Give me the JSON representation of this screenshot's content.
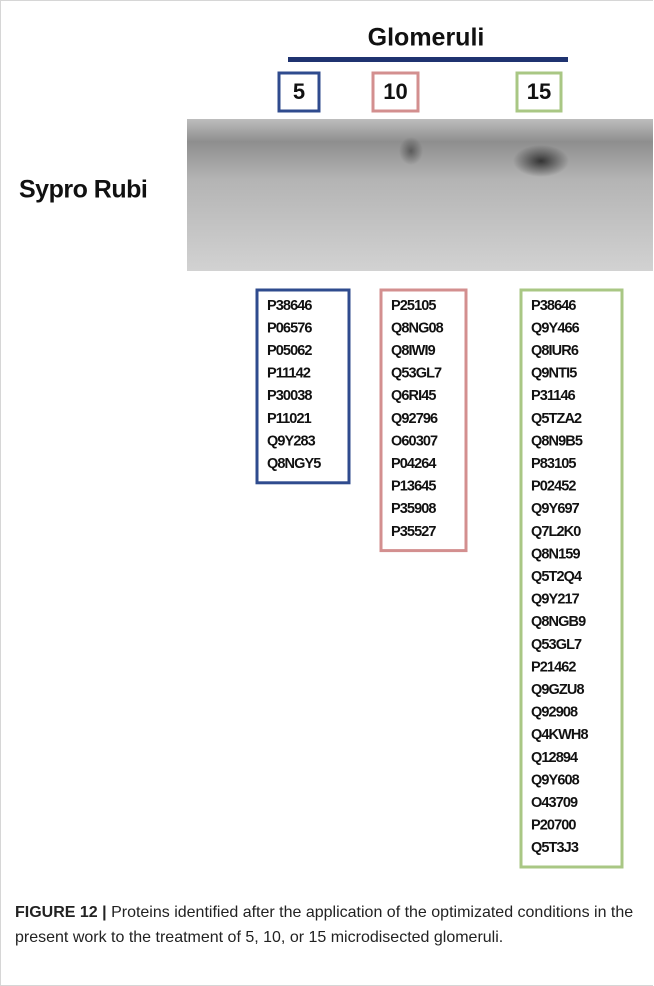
{
  "figure": {
    "group_title": "Glomeruli",
    "row_label": "Sypro Rubi",
    "columns": [
      {
        "label": "5",
        "proteins": [
          "P38646",
          "P06576",
          "P05062",
          "P11142",
          "P30038",
          "P11021",
          "Q9Y283",
          "Q8NGY5"
        ]
      },
      {
        "label": "10",
        "proteins": [
          "P25105",
          "Q8NG08",
          "Q8IWI9",
          "Q53GL7",
          "Q6RI45",
          "Q92796",
          "O60307",
          "P04264",
          "P13645",
          "P35908",
          "P35527"
        ]
      },
      {
        "label": "15",
        "proteins": [
          "P38646",
          "Q9Y466",
          "Q8IUR6",
          "Q9NTI5",
          "P31146",
          "Q5TZA2",
          "Q8N9B5",
          "P83105",
          "P02452",
          "Q9Y697",
          "Q7L2K0",
          "Q8N159",
          "Q5T2Q4",
          "Q9Y217",
          "Q8NGB9",
          "Q53GL7",
          "P21462",
          "Q9GZU8",
          "Q92908",
          "Q4KWH8",
          "Q12894",
          "Q9Y608",
          "O43709",
          "P20700",
          "Q5T3J3"
        ]
      }
    ],
    "caption": {
      "label": "FIGURE 12 |",
      "text": "Proteins identified after the application of the optimizated conditions in the present work to the treatment of 5, 10, or 15 microdisected glomeruli."
    }
  }
}
